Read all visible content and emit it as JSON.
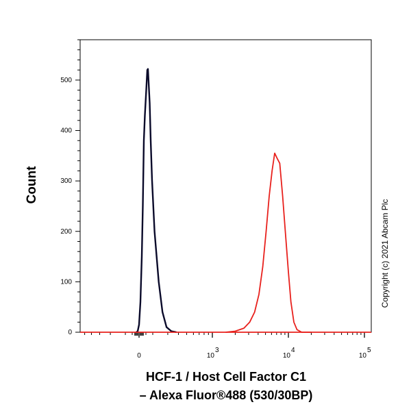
{
  "chart_data": {
    "type": "line",
    "title_line1": "HCF-1 / Host Cell Factor C1",
    "title_line2": "– Alexa Fluor®488 (530/30BP)",
    "ylabel": "Count",
    "copyright": "Copyright (c) 2021 Abcam Plc",
    "ylim": [
      0,
      580
    ],
    "y_ticks": [
      {
        "value": 0,
        "label": "0"
      },
      {
        "value": 100,
        "label": "100"
      },
      {
        "value": 200,
        "label": "200"
      },
      {
        "value": 300,
        "label": "300"
      },
      {
        "value": 400,
        "label": "400"
      },
      {
        "value": 500,
        "label": "500"
      }
    ],
    "x_scale": "biexponential",
    "x_ticks": [
      {
        "value": 0,
        "label": "0",
        "exp": ""
      },
      {
        "value": 1000,
        "label": "10",
        "exp": "3"
      },
      {
        "value": 10000,
        "label": "10",
        "exp": "4"
      },
      {
        "value": 100000,
        "label": "10",
        "exp": "5"
      }
    ],
    "colors": {
      "series_black": "#000080",
      "series_red": "#e8201c",
      "axis": "#000000"
    },
    "series": [
      {
        "color": "#0a0a2a",
        "points": [
          [
            -40,
            0
          ],
          [
            -20,
            2
          ],
          [
            0,
            15
          ],
          [
            20,
            60
          ],
          [
            40,
            150
          ],
          [
            55,
            250
          ],
          [
            70,
            380
          ],
          [
            85,
            430
          ],
          [
            105,
            480
          ],
          [
            120,
            520
          ],
          [
            130,
            522
          ],
          [
            140,
            495
          ],
          [
            155,
            455
          ],
          [
            170,
            380
          ],
          [
            190,
            300
          ],
          [
            210,
            200
          ],
          [
            235,
            100
          ],
          [
            260,
            40
          ],
          [
            290,
            10
          ],
          [
            330,
            2
          ],
          [
            380,
            0
          ]
        ]
      },
      {
        "color": "#e8201c",
        "points": [
          [
            1500,
            0
          ],
          [
            2000,
            2
          ],
          [
            2600,
            8
          ],
          [
            3100,
            20
          ],
          [
            3600,
            40
          ],
          [
            4100,
            75
          ],
          [
            4600,
            130
          ],
          [
            5100,
            200
          ],
          [
            5600,
            270
          ],
          [
            6100,
            320
          ],
          [
            6600,
            355
          ],
          [
            7100,
            345
          ],
          [
            7700,
            335
          ],
          [
            8400,
            270
          ],
          [
            9100,
            200
          ],
          [
            10000,
            120
          ],
          [
            10800,
            60
          ],
          [
            11800,
            20
          ],
          [
            13000,
            5
          ],
          [
            15000,
            0
          ],
          [
            20000,
            0
          ]
        ]
      },
      {
        "color": "#e8201c",
        "points": [
          [
            -700,
            0
          ],
          [
            -300,
            0
          ],
          [
            0,
            0
          ],
          [
            400,
            0
          ],
          [
            1500,
            0
          ],
          [
            15000,
            0
          ],
          [
            100000,
            0
          ],
          [
            130000,
            0
          ]
        ]
      }
    ]
  }
}
